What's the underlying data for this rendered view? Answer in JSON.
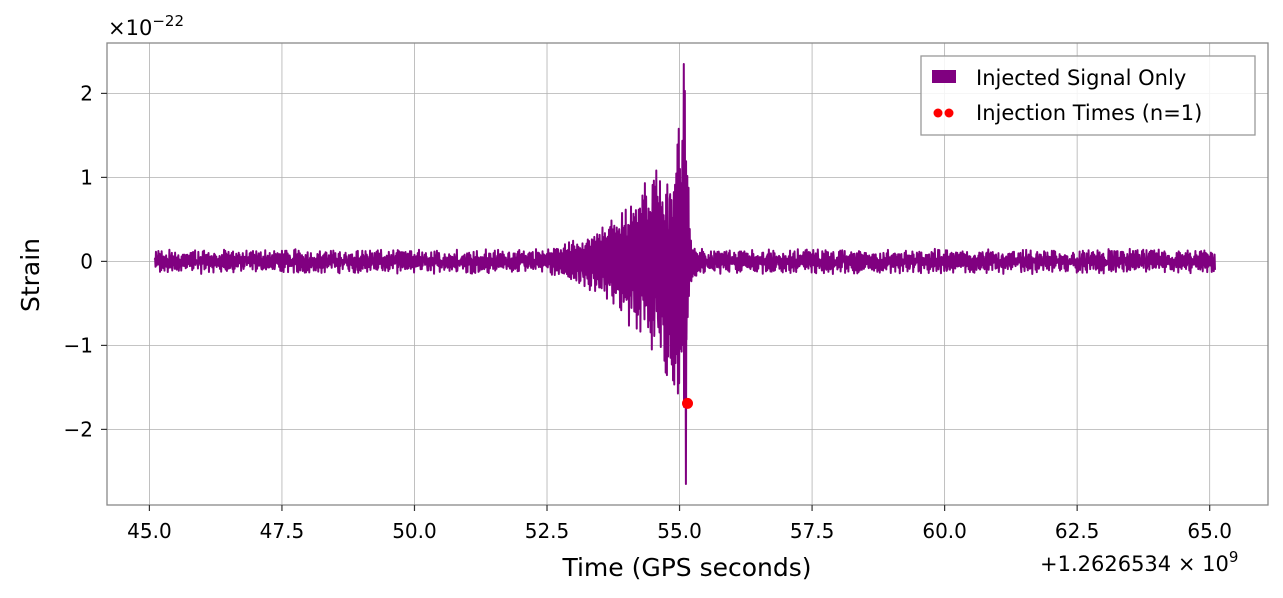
{
  "chart_data": {
    "type": "line",
    "title": "",
    "xlabel": "Time (GPS seconds)",
    "ylabel": "Strain",
    "x_offset_text": "+1.2626534 × 10",
    "x_offset_exp": "9",
    "y_multiplier_text": "×10",
    "y_multiplier_exp": "−22",
    "xlim": [
      44.2,
      66.1
    ],
    "ylim": [
      -2.9,
      2.6
    ],
    "grid": true,
    "legend_position": "top-right",
    "x_ticks": [
      {
        "value": 45.0,
        "label": "45.0"
      },
      {
        "value": 47.5,
        "label": "47.5"
      },
      {
        "value": 50.0,
        "label": "50.0"
      },
      {
        "value": 52.5,
        "label": "52.5"
      },
      {
        "value": 55.0,
        "label": "55.0"
      },
      {
        "value": 57.5,
        "label": "57.5"
      },
      {
        "value": 60.0,
        "label": "60.0"
      },
      {
        "value": 62.5,
        "label": "62.5"
      },
      {
        "value": 65.0,
        "label": "65.0"
      }
    ],
    "y_ticks": [
      {
        "value": 2,
        "label": "2"
      },
      {
        "value": 1,
        "label": "1"
      },
      {
        "value": 0,
        "label": "0"
      },
      {
        "value": -1,
        "label": "−1"
      },
      {
        "value": -2,
        "label": "−2"
      }
    ],
    "series": [
      {
        "name": "Injected Signal Only",
        "kind": "line",
        "color": "#800080",
        "x_range": [
          45.1,
          65.1
        ],
        "baseline_amplitude": 0.15,
        "envelope": [
          {
            "x": 45.1,
            "amp": 0.15
          },
          {
            "x": 52.5,
            "amp": 0.15
          },
          {
            "x": 53.2,
            "amp": 0.3
          },
          {
            "x": 53.8,
            "amp": 0.6
          },
          {
            "x": 54.3,
            "amp": 0.95
          },
          {
            "x": 54.7,
            "amp": 1.3
          },
          {
            "x": 54.95,
            "amp": 1.7
          },
          {
            "x": 55.05,
            "amp": 2.0
          },
          {
            "x": 55.12,
            "amp": 2.4
          },
          {
            "x": 55.2,
            "amp": 0.3
          },
          {
            "x": 55.35,
            "amp": 0.15
          },
          {
            "x": 65.1,
            "amp": 0.15
          }
        ],
        "extremes": [
          {
            "x": 55.08,
            "y": 2.35
          },
          {
            "x": 55.12,
            "y": -2.65
          }
        ]
      },
      {
        "name": "Injection Times (n=1)",
        "kind": "scatter",
        "color": "#ff0000",
        "points": [
          {
            "x": 55.15,
            "y": -1.69
          }
        ]
      }
    ]
  }
}
